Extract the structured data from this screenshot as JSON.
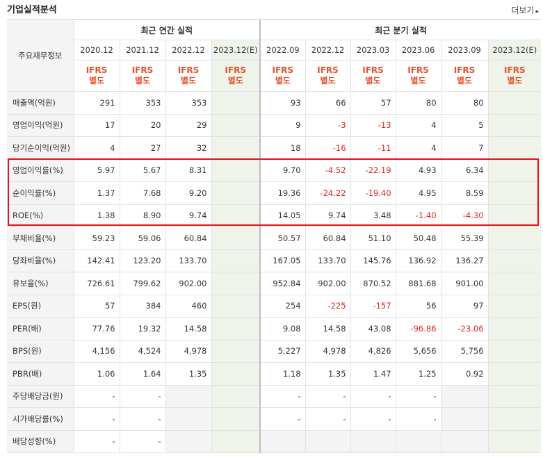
{
  "title": "기업실적분석",
  "more_label": "더보기",
  "header": {
    "row_label": "주요재무정보",
    "annual_label": "최근 연간 실적",
    "quarterly_label": "최근 분기 실적",
    "annual_periods": [
      "2020.12",
      "2021.12",
      "2022.12",
      "2023.12(E)"
    ],
    "quarterly_periods": [
      "2022.09",
      "2022.12",
      "2023.03",
      "2023.06",
      "2023.09",
      "2023.12(E)"
    ],
    "ifrs_top": "IFRS",
    "ifrs_bottom": "별도"
  },
  "rows": [
    {
      "label": "매출액(억원)",
      "values": [
        "291",
        "353",
        "353",
        "",
        "93",
        "66",
        "57",
        "80",
        "80",
        ""
      ]
    },
    {
      "label": "영업이익(억원)",
      "values": [
        "17",
        "20",
        "29",
        "",
        "9",
        "-3",
        "-13",
        "4",
        "5",
        ""
      ]
    },
    {
      "label": "당기순이익(억원)",
      "values": [
        "4",
        "27",
        "32",
        "",
        "18",
        "-16",
        "-11",
        "4",
        "7",
        ""
      ]
    },
    {
      "label": "영업이익률(%)",
      "values": [
        "5.97",
        "5.67",
        "8.31",
        "",
        "9.70",
        "-4.52",
        "-22.19",
        "4.93",
        "6.34",
        ""
      ]
    },
    {
      "label": "순이익률(%)",
      "values": [
        "1.37",
        "7.68",
        "9.20",
        "",
        "19.36",
        "-24.22",
        "-19.40",
        "4.95",
        "8.59",
        ""
      ]
    },
    {
      "label": "ROE(%)",
      "values": [
        "1.38",
        "8.90",
        "9.74",
        "",
        "14.05",
        "9.74",
        "3.48",
        "-1.40",
        "-4.30",
        ""
      ]
    },
    {
      "label": "부채비율(%)",
      "values": [
        "59.23",
        "59.06",
        "60.84",
        "",
        "50.57",
        "60.84",
        "51.10",
        "50.48",
        "55.39",
        ""
      ]
    },
    {
      "label": "당좌비율(%)",
      "values": [
        "142.41",
        "123.20",
        "133.70",
        "",
        "167.05",
        "133.70",
        "145.76",
        "136.92",
        "136.27",
        ""
      ]
    },
    {
      "label": "유보율(%)",
      "values": [
        "726.61",
        "799.62",
        "902.00",
        "",
        "952.84",
        "902.00",
        "870.52",
        "881.68",
        "901.00",
        ""
      ]
    },
    {
      "label": "EPS(원)",
      "values": [
        "57",
        "384",
        "460",
        "",
        "254",
        "-225",
        "-157",
        "56",
        "97",
        ""
      ]
    },
    {
      "label": "PER(배)",
      "values": [
        "77.76",
        "19.32",
        "14.58",
        "",
        "9.08",
        "14.58",
        "43.08",
        "-96.86",
        "-23.06",
        ""
      ]
    },
    {
      "label": "BPS(원)",
      "values": [
        "4,156",
        "4,524",
        "4,978",
        "",
        "5,227",
        "4,978",
        "4,826",
        "5,656",
        "5,756",
        ""
      ]
    },
    {
      "label": "PBR(배)",
      "values": [
        "1.06",
        "1.64",
        "1.35",
        "",
        "1.18",
        "1.35",
        "1.47",
        "1.25",
        "0.92",
        ""
      ]
    },
    {
      "label": "주당배당금(원)",
      "values": [
        "-",
        "-",
        "",
        "",
        "-",
        "-",
        "-",
        "-",
        "",
        ""
      ]
    },
    {
      "label": "시가배당률(%)",
      "values": [
        "-",
        "-",
        "",
        "",
        "-",
        "-",
        "-",
        "-",
        "",
        ""
      ]
    },
    {
      "label": "배당성향(%)",
      "values": [
        "-",
        "-",
        "",
        "",
        "",
        "",
        "",
        "",
        "",
        ""
      ]
    }
  ],
  "colors": {
    "negative": "#e0241f",
    "ifrs": "#e8502a",
    "highlight": "#e8101a",
    "estimate_bg": "#eef4ea"
  }
}
